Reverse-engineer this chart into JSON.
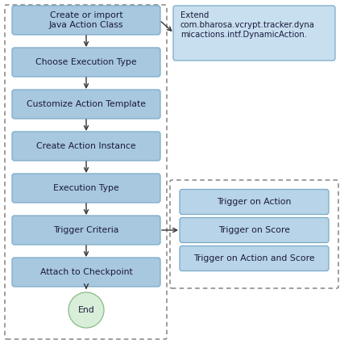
{
  "figsize": [
    4.22,
    4.26
  ],
  "dpi": 100,
  "bg_color": "#ffffff",
  "box_fill_main": "#a8c8e0",
  "box_fill_side": "#b8d4e8",
  "box_edge": "#7aaac8",
  "box_text_color": "#1a1a3a",
  "extend_box_fill": "#c8dff0",
  "extend_box_edge": "#7aaac8",
  "end_circle_fill": "#d8eed8",
  "end_circle_edge": "#88bb88",
  "arrow_color": "#333333",
  "font_size": 7.8,
  "main_boxes": [
    {
      "label": "Create or import\nJava Action Class"
    },
    {
      "label": "Choose Execution Type"
    },
    {
      "label": "Customize Action Template"
    },
    {
      "label": "Create Action Instance"
    },
    {
      "label": "Execution Type"
    },
    {
      "label": "Trigger Criteria"
    },
    {
      "label": "Attach to Checkpoint"
    }
  ],
  "side_boxes": [
    {
      "label": "Trigger on Action"
    },
    {
      "label": "Trigger on Score"
    },
    {
      "label": "Trigger on Action and Score"
    }
  ],
  "extend_label": "Extend\ncom.bharosa.vcrypt.tracker.dyna\nmicactions.intf.DynamicAction."
}
